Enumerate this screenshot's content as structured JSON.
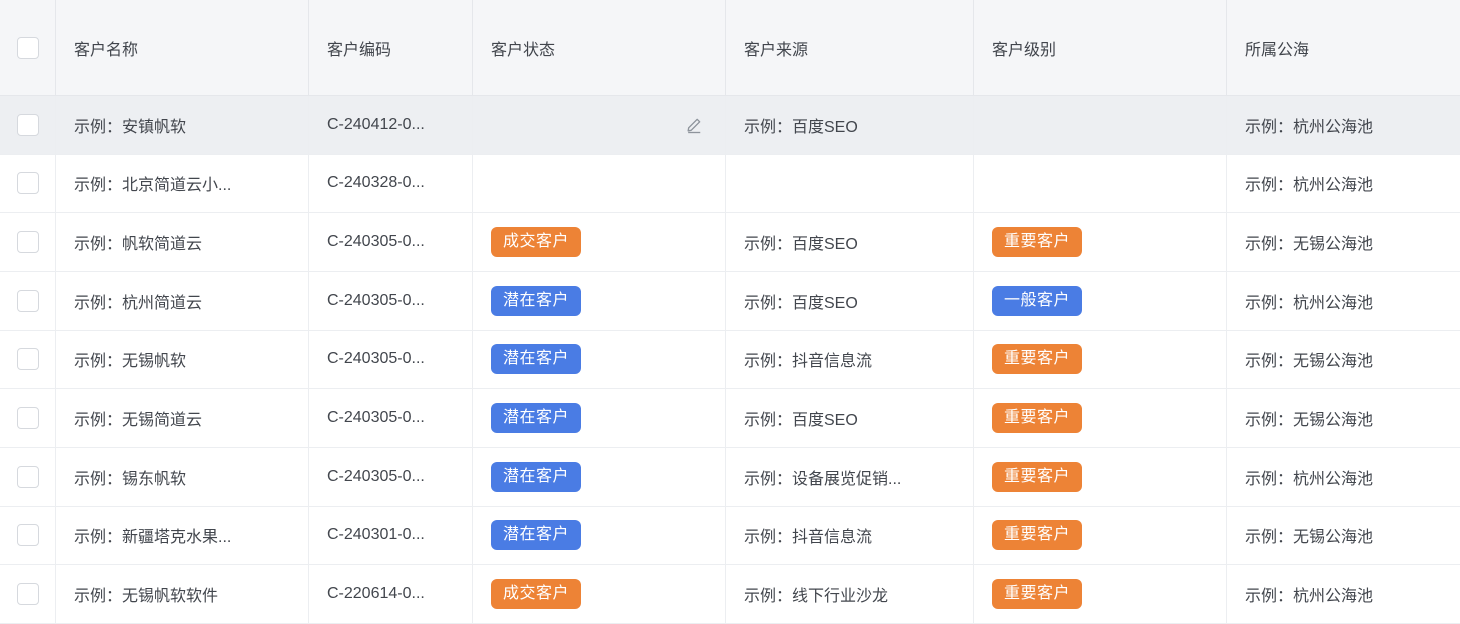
{
  "table": {
    "columns": [
      {
        "key": "name",
        "label": "客户名称"
      },
      {
        "key": "code",
        "label": "客户编码"
      },
      {
        "key": "status",
        "label": "客户状态"
      },
      {
        "key": "source",
        "label": "客户来源"
      },
      {
        "key": "level",
        "label": "客户级别"
      },
      {
        "key": "pool",
        "label": "所属公海"
      }
    ],
    "rows": [
      {
        "name": "示例：安镇帆软",
        "code": "C-240412-0...",
        "status": null,
        "edit_icon": true,
        "source": "示例：百度SEO",
        "level": null,
        "pool": "示例：杭州公海池",
        "highlighted": true
      },
      {
        "name": "示例：北京简道云小...",
        "code": "C-240328-0...",
        "status": null,
        "source": "",
        "level": null,
        "pool": "示例：杭州公海池"
      },
      {
        "name": "示例：帆软简道云",
        "code": "C-240305-0...",
        "status": {
          "text": "成交客户",
          "color": "orange"
        },
        "source": "示例：百度SEO",
        "level": {
          "text": "重要客户",
          "color": "orange"
        },
        "pool": "示例：无锡公海池"
      },
      {
        "name": "示例：杭州简道云",
        "code": "C-240305-0...",
        "status": {
          "text": "潜在客户",
          "color": "blue"
        },
        "source": "示例：百度SEO",
        "level": {
          "text": "一般客户",
          "color": "blue"
        },
        "pool": "示例：杭州公海池"
      },
      {
        "name": "示例：无锡帆软",
        "code": "C-240305-0...",
        "status": {
          "text": "潜在客户",
          "color": "blue"
        },
        "source": "示例：抖音信息流",
        "level": {
          "text": "重要客户",
          "color": "orange"
        },
        "pool": "示例：无锡公海池"
      },
      {
        "name": "示例：无锡简道云",
        "code": "C-240305-0...",
        "status": {
          "text": "潜在客户",
          "color": "blue"
        },
        "source": "示例：百度SEO",
        "level": {
          "text": "重要客户",
          "color": "orange"
        },
        "pool": "示例：无锡公海池"
      },
      {
        "name": "示例：锡东帆软",
        "code": "C-240305-0...",
        "status": {
          "text": "潜在客户",
          "color": "blue"
        },
        "source": "示例：设备展览促销...",
        "level": {
          "text": "重要客户",
          "color": "orange"
        },
        "pool": "示例：杭州公海池"
      },
      {
        "name": "示例：新疆塔克水果...",
        "code": "C-240301-0...",
        "status": {
          "text": "潜在客户",
          "color": "blue"
        },
        "source": "示例：抖音信息流",
        "level": {
          "text": "重要客户",
          "color": "orange"
        },
        "pool": "示例：无锡公海池"
      },
      {
        "name": "示例：无锡帆软软件",
        "code": "C-220614-0...",
        "status": {
          "text": "成交客户",
          "color": "orange"
        },
        "source": "示例：线下行业沙龙",
        "level": {
          "text": "重要客户",
          "color": "orange"
        },
        "pool": "示例：杭州公海池"
      }
    ]
  },
  "icons": {
    "edit": "edit-pencil-icon"
  },
  "colors": {
    "badge_orange": "#ED8336",
    "badge_blue": "#4A7CE4",
    "header_bg": "#F5F6F8",
    "highlight_row_bg": "#EDEFF2",
    "border": "#ECEEF1",
    "text": "#42464D",
    "icon_gray": "#8E949C"
  }
}
